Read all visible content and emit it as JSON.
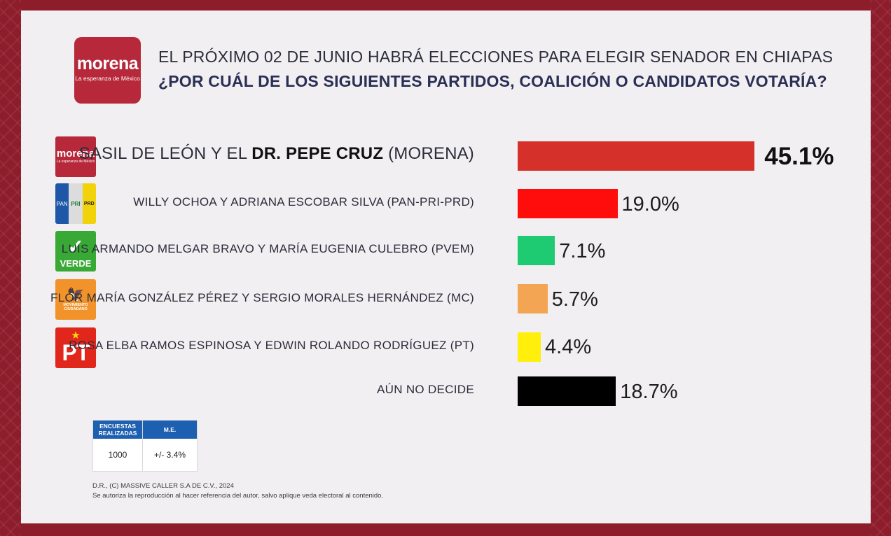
{
  "header": {
    "logo_word": "morena",
    "logo_tagline": "La esperanza de México",
    "title_line1": "EL PRÓXIMO 02 DE JUNIO HABRÁ ELECCIONES PARA ELEGIR SENADOR EN CHIAPAS",
    "title_line2": "¿POR CUÁL DE LOS SIGUIENTES PARTIDOS, COALICIÓN O CANDIDATOS VOTARÍA?"
  },
  "logos": {
    "morena_word": "morena",
    "morena_tagline": "La esperanza de México",
    "coalition": [
      "PAN",
      "PRI",
      "PRD"
    ],
    "verde_mark": "✓",
    "verde_text": "VERDE",
    "mc_mark": "🦅",
    "mc_text_1": "MOVIMIENTO",
    "mc_text_2": "CIUDADANO",
    "pt_mark": "★",
    "pt_text": "PT"
  },
  "chart_data": {
    "type": "bar",
    "orientation": "horizontal",
    "title": "¿POR CUÁL DE LOS SIGUIENTES PARTIDOS, COALICIÓN O CANDIDATOS VOTARÍA?",
    "categories": [
      "SASIL DE LEÓN Y EL DR. PEPE CRUZ (MORENA)",
      "WILLY OCHOA Y ADRIANA ESCOBAR SILVA (PAN-PRI-PRD)",
      "LUIS ARMANDO MELGAR BRAVO Y MARÍA EUGENIA CULEBRO (PVEM)",
      "FLOR MARÍA GONZÁLEZ PÉREZ Y SERGIO MORALES HERNÁNDEZ (MC)",
      "ROSA ELBA RAMOS ESPINOSA Y EDWIN ROLANDO RODRÍGUEZ (PT)",
      "AÚN NO DECIDE"
    ],
    "values": [
      45.1,
      19.0,
      7.1,
      5.7,
      4.4,
      18.7
    ],
    "value_labels": [
      "45.1%",
      "19.0%",
      "7.1%",
      "5.7%",
      "4.4%",
      "18.7%"
    ],
    "colors": [
      "#d5302a",
      "#ff0d0d",
      "#1fcb72",
      "#f4a553",
      "#ffef0a",
      "#000000"
    ],
    "label_first_prefix": "SASIL DE LEÓN Y EL ",
    "label_first_bold": "DR. PEPE CRUZ",
    "label_first_suffix": " (MORENA)",
    "xlim": [
      0,
      50
    ],
    "unit": "%"
  },
  "stats": {
    "col1_header": "ENCUESTAS REALIZADAS",
    "col2_header": "M.E.",
    "col1_value": "1000",
    "col2_value": "+/- 3.4%"
  },
  "footer": {
    "line1": "D.R., (C) MASSIVE CALLER S.A DE C.V., 2024",
    "line2": "Se autoriza la reproducción al hacer referencia del autor, salvo aplique veda electoral al contenido."
  }
}
